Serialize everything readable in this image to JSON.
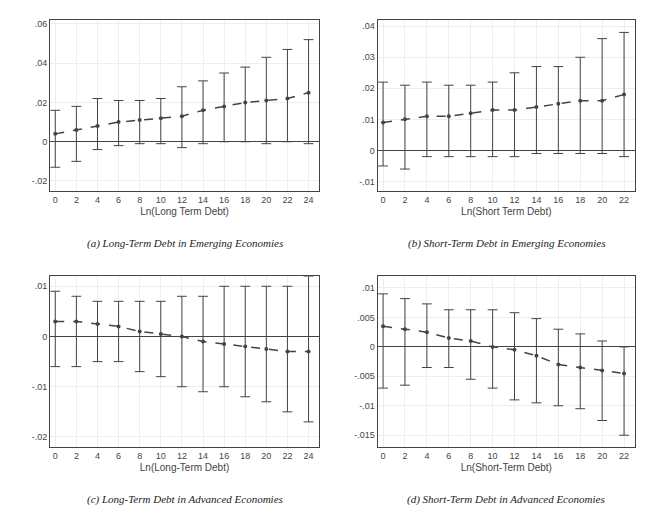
{
  "chart_data": [
    {
      "type": "line",
      "title": "(a) Long-Term Debt in Emerging Economies",
      "x_label": "Ln(Long Term Debt)",
      "x": [
        0,
        2,
        4,
        6,
        8,
        10,
        12,
        14,
        16,
        18,
        20,
        22,
        24
      ],
      "values": [
        0.004,
        0.006,
        0.008,
        0.01,
        0.011,
        0.012,
        0.013,
        0.016,
        0.018,
        0.02,
        0.021,
        0.022,
        0.025
      ],
      "ci_lower": [
        -0.013,
        -0.01,
        -0.004,
        -0.002,
        -0.001,
        -0.001,
        -0.003,
        -0.001,
        -0.0,
        0.0,
        -0.001,
        0.0,
        -0.001
      ],
      "ci_upper": [
        0.016,
        0.018,
        0.022,
        0.021,
        0.021,
        0.022,
        0.028,
        0.031,
        0.035,
        0.038,
        0.043,
        0.047,
        0.052
      ],
      "color": "#444444",
      "line_style": "dashed",
      "marker": "circle",
      "grid": true,
      "xlim": [
        -0.5,
        25
      ],
      "xticks": [
        0,
        2,
        4,
        6,
        8,
        10,
        12,
        14,
        16,
        18,
        20,
        22,
        24
      ],
      "ylim": [
        -0.025,
        0.062
      ],
      "yticks": [
        {
          "value": -0.02,
          "label": "-.02"
        },
        0,
        {
          "value": 0.02,
          "label": ".02"
        },
        {
          "value": 0.04,
          "label": ".04"
        },
        {
          "value": 0.06,
          "label": ".06"
        }
      ]
    },
    {
      "type": "line",
      "title": "(b) Short-Term Debt in Emerging Economies",
      "x_label": "Ln(Short Term Debt)",
      "x": [
        0,
        2,
        4,
        6,
        8,
        10,
        12,
        14,
        16,
        18,
        20,
        22
      ],
      "values": [
        0.009,
        0.01,
        0.011,
        0.011,
        0.012,
        0.013,
        0.013,
        0.014,
        0.015,
        0.016,
        0.016,
        0.018
      ],
      "ci_lower": [
        -0.005,
        -0.006,
        -0.002,
        -0.002,
        -0.002,
        -0.002,
        -0.002,
        -0.001,
        -0.001,
        -0.001,
        -0.001,
        -0.002
      ],
      "ci_upper": [
        0.022,
        0.021,
        0.022,
        0.021,
        0.021,
        0.022,
        0.025,
        0.027,
        0.027,
        0.03,
        0.036,
        0.038
      ],
      "color": "#444444",
      "line_style": "dashed",
      "marker": "circle",
      "grid": true,
      "xlim": [
        -0.5,
        23
      ],
      "xticks": [
        0,
        2,
        4,
        6,
        8,
        10,
        12,
        14,
        16,
        18,
        20,
        22
      ],
      "ylim": [
        -0.013,
        0.042
      ],
      "yticks": [
        {
          "value": -0.01,
          "label": "-.01"
        },
        0,
        {
          "value": 0.01,
          "label": ".01"
        },
        {
          "value": 0.02,
          "label": ".02"
        },
        {
          "value": 0.03,
          "label": ".03"
        },
        {
          "value": 0.04,
          "label": ".04"
        }
      ]
    },
    {
      "type": "line",
      "title": "(c) Long-Term Debt in Advanced Economies",
      "x_label": "Ln(Long-Term Debt)",
      "x": [
        0,
        2,
        4,
        6,
        8,
        10,
        12,
        14,
        16,
        18,
        20,
        22,
        24
      ],
      "values": [
        0.003,
        0.003,
        0.0025,
        0.002,
        0.001,
        0.0005,
        0.0,
        -0.001,
        -0.0015,
        -0.002,
        -0.0025,
        -0.003,
        -0.003
      ],
      "ci_lower": [
        -0.006,
        -0.006,
        -0.005,
        -0.005,
        -0.007,
        -0.008,
        -0.01,
        -0.011,
        -0.01,
        -0.012,
        -0.013,
        -0.015,
        -0.017
      ],
      "ci_upper": [
        0.009,
        0.008,
        0.007,
        0.007,
        0.007,
        0.007,
        0.008,
        0.008,
        0.01,
        0.01,
        0.01,
        0.01,
        0.012
      ],
      "color": "#444444",
      "line_style": "dashed",
      "marker": "circle",
      "grid": true,
      "xlim": [
        -0.5,
        25
      ],
      "xticks": [
        0,
        2,
        4,
        6,
        8,
        10,
        12,
        14,
        16,
        18,
        20,
        22,
        24
      ],
      "ylim": [
        -0.022,
        0.012
      ],
      "yticks": [
        {
          "value": -0.02,
          "label": "-.02"
        },
        {
          "value": -0.01,
          "label": "-.01"
        },
        0,
        {
          "value": 0.01,
          "label": ".01"
        }
      ]
    },
    {
      "type": "line",
      "title": "(d) Short-Term Debt in Advanced Economies",
      "x_label": "Ln(Short-Term Debt)",
      "x": [
        0,
        2,
        4,
        6,
        8,
        10,
        12,
        14,
        16,
        18,
        20,
        22
      ],
      "values": [
        0.0035,
        0.003,
        0.0025,
        0.0015,
        0.001,
        0.0,
        -0.0005,
        -0.0015,
        -0.003,
        -0.0035,
        -0.004,
        -0.0045
      ],
      "ci_lower": [
        -0.007,
        -0.0065,
        -0.0035,
        -0.0035,
        -0.0055,
        -0.007,
        -0.009,
        -0.0095,
        -0.01,
        -0.0105,
        -0.0125,
        -0.015
      ],
      "ci_upper": [
        0.009,
        0.0082,
        0.0073,
        0.0063,
        0.0063,
        0.0063,
        0.0058,
        0.0048,
        0.003,
        0.0022,
        0.001,
        0.0
      ],
      "color": "#444444",
      "line_style": "dashed",
      "marker": "circle",
      "grid": true,
      "xlim": [
        -0.5,
        23
      ],
      "xticks": [
        0,
        2,
        4,
        6,
        8,
        10,
        12,
        14,
        16,
        18,
        20,
        22
      ],
      "ylim": [
        -0.017,
        0.012
      ],
      "yticks": [
        {
          "value": -0.015,
          "label": "-.015"
        },
        {
          "value": -0.01,
          "label": "-.01"
        },
        {
          "value": -0.005,
          "label": "-.005"
        },
        0,
        {
          "value": 0.005,
          "label": ".005"
        },
        {
          "value": 0.01,
          "label": ".01"
        }
      ]
    }
  ]
}
